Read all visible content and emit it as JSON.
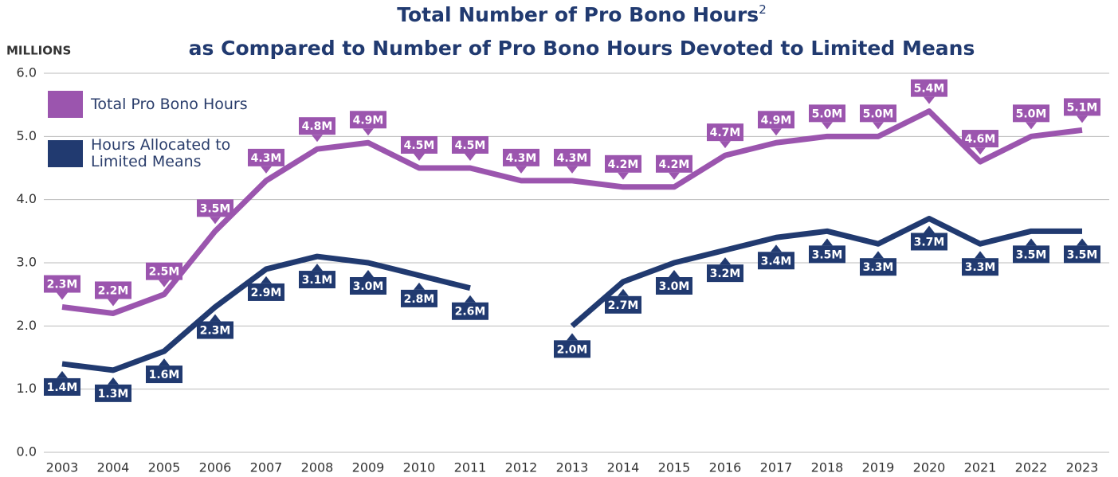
{
  "chart_data": {
    "type": "line",
    "title": "Total Number of Pro Bono Hours",
    "title_superscript": "2",
    "subtitle": "as Compared to Number of Pro Bono Hours Devoted to Limited Means",
    "y_axis_label": "MILLIONS",
    "categories": [
      "2003",
      "2004",
      "2005",
      "2006",
      "2007",
      "2008",
      "2009",
      "2010",
      "2011",
      "2012",
      "2013",
      "2014",
      "2015",
      "2016",
      "2017",
      "2018",
      "2019",
      "2020",
      "2021",
      "2022",
      "2023"
    ],
    "series": [
      {
        "name": "Total Pro Bono Hours",
        "color": "#9b55ae",
        "label_position": "above",
        "values": [
          2.3,
          2.2,
          2.5,
          3.5,
          4.3,
          4.8,
          4.9,
          4.5,
          4.5,
          4.3,
          4.3,
          4.2,
          4.2,
          4.7,
          4.9,
          5.0,
          5.0,
          5.4,
          4.6,
          5.0,
          5.1
        ],
        "value_labels": [
          "2.3M",
          "2.2M",
          "2.5M",
          "3.5M",
          "4.3M",
          "4.8M",
          "4.9M",
          "4.5M",
          "4.5M",
          "4.3M",
          "4.3M",
          "4.2M",
          "4.2M",
          "4.7M",
          "4.9M",
          "5.0M",
          "5.0M",
          "5.4M",
          "4.6M",
          "5.0M",
          "5.1M"
        ]
      },
      {
        "name": "Hours Allocated to Limited Means",
        "color": "#213a70",
        "label_position": "below",
        "values": [
          1.4,
          1.3,
          1.6,
          2.3,
          2.9,
          3.1,
          3.0,
          2.8,
          2.6,
          null,
          2.0,
          2.7,
          3.0,
          3.2,
          3.4,
          3.5,
          3.3,
          3.7,
          3.3,
          3.5,
          3.5
        ],
        "value_labels": [
          "1.4M",
          "1.3M",
          "1.6M",
          "2.3M",
          "2.9M",
          "3.1M",
          "3.0M",
          "2.8M",
          "2.6M",
          null,
          "2.0M",
          "2.7M",
          "3.0M",
          "3.2M",
          "3.4M",
          "3.5M",
          "3.3M",
          "3.7M",
          "3.3M",
          "3.5M",
          "3.5M"
        ]
      }
    ],
    "ylim": [
      0,
      6
    ],
    "yticks": [
      {
        "value": 0,
        "label": "0.0"
      },
      {
        "value": 1,
        "label": "1.0"
      },
      {
        "value": 2,
        "label": "2.0"
      },
      {
        "value": 3,
        "label": "3.0"
      },
      {
        "value": 4,
        "label": "4.0"
      },
      {
        "value": 5,
        "label": "5.0"
      },
      {
        "value": 6,
        "label": "6.0"
      }
    ],
    "grid": true,
    "legend": "top-left"
  }
}
